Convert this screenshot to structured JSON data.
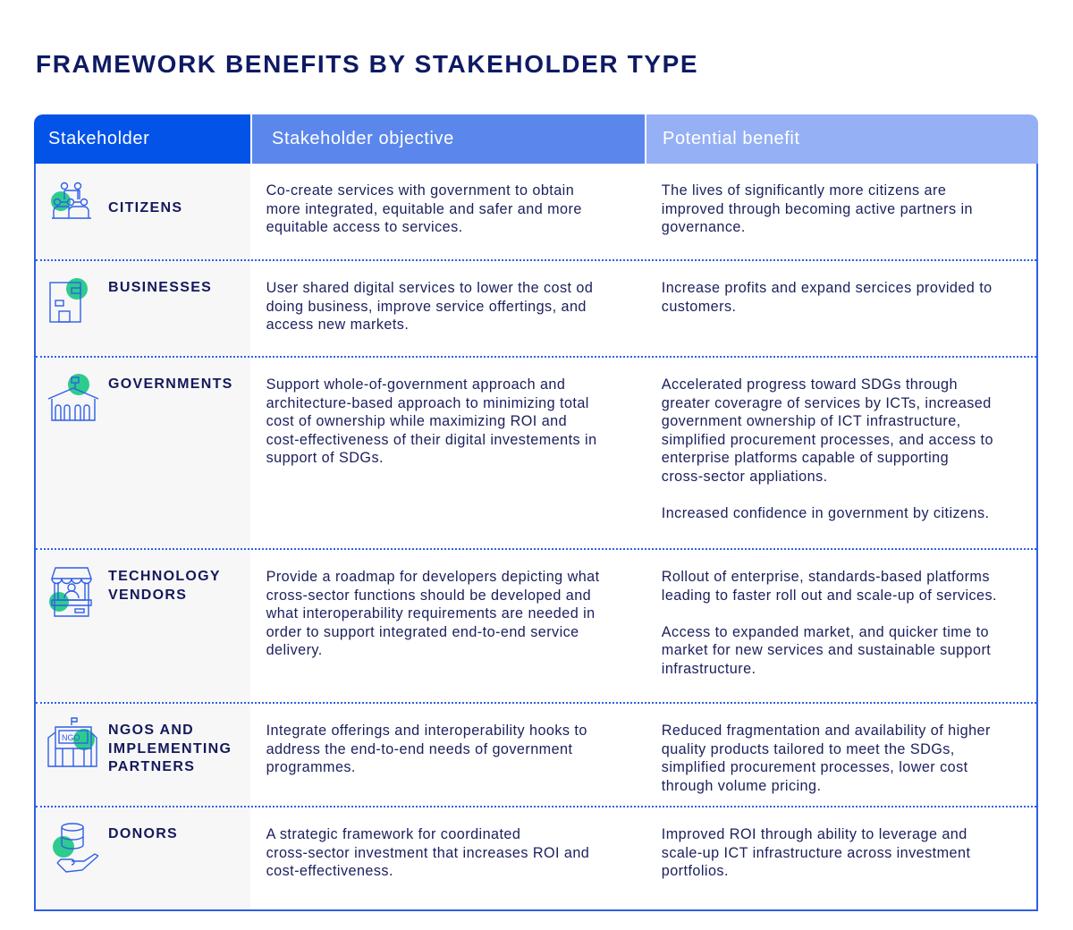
{
  "title": "FRAMEWORK BENEFITS BY STAKEHOLDER TYPE",
  "headers": {
    "stakeholder": "Stakeholder",
    "objective": "Stakeholder objective",
    "benefit": "Potential benefit"
  },
  "colors": {
    "header_1": "#0353e9",
    "header_2": "#5b87ec",
    "header_3": "#95b0f4",
    "border": "#2f5fe6",
    "icon_accent": "#2ecb8e",
    "text": "#1b1f5c"
  },
  "rows": [
    {
      "icon": "people-network-icon",
      "stakeholder": "CITIZENS",
      "objective": "Co-create services with government to obtain\nmore integrated, equitable and safer and more\nequitable access to services.",
      "benefit": "The lives of significantly more citizens are\nimproved through becoming active partners in\ngovernance."
    },
    {
      "icon": "business-building-icon",
      "stakeholder": "BUSINESSES",
      "objective": "User shared digital services to lower the cost od\ndoing business, improve service offertings, and\naccess new markets.",
      "benefit": "Increase profits and expand sercices provided to\ncustomers."
    },
    {
      "icon": "government-building-icon",
      "stakeholder": "GOVERNMENTS",
      "objective": "Support whole-of-government approach and\narchitecture-based approach to minimizing total\ncost of ownership while maximizing ROI and\ncost-effectiveness of their digital investements in\nsupport of SDGs.",
      "benefit": "Accelerated progress toward SDGs through\ngreater coveragre of services by ICTs, increased\ngovernment ownership of ICT infrastructure,\nsimplified procurement processes, and access to\nenterprise platforms capable of supporting\ncross-sector appliations.\n\nIncreased confidence in government by citizens."
    },
    {
      "icon": "vendor-stall-icon",
      "stakeholder": "TECHNOLOGY\nVENDORS",
      "objective": "Provide a roadmap for developers depicting what\ncross-sector functions should be developed and\nwhat interoperability requirements are needed in\norder to support integrated end-to-end service\ndelivery.",
      "benefit": "Rollout of enterprise, standards-based platforms\nleading to faster roll out and scale-up of services.\n\nAccess to expanded market, and quicker time to\nmarket for new services and sustainable support\ninfrastructure."
    },
    {
      "icon": "ngo-building-icon",
      "stakeholder": "NGOS AND\nIMPLEMENTING\nPARTNERS",
      "icon_text": "NGO",
      "objective": "Integrate offerings and interoperability hooks to\naddress the end-to-end needs of government\nprogrammes.",
      "benefit": "Reduced fragmentation and availability of higher\nquality products tailored to meet the SDGs,\nsimplified procurement processes, lower cost\nthrough volume pricing."
    },
    {
      "icon": "hand-coins-icon",
      "stakeholder": "DONORS",
      "objective": "A strategic framework for coordinated\ncross-sector investment that increases ROI and\ncost-effectiveness.",
      "benefit": "Improved ROI through ability to leverage and\nscale-up ICT infrastructure across investment\nportfolios."
    }
  ]
}
